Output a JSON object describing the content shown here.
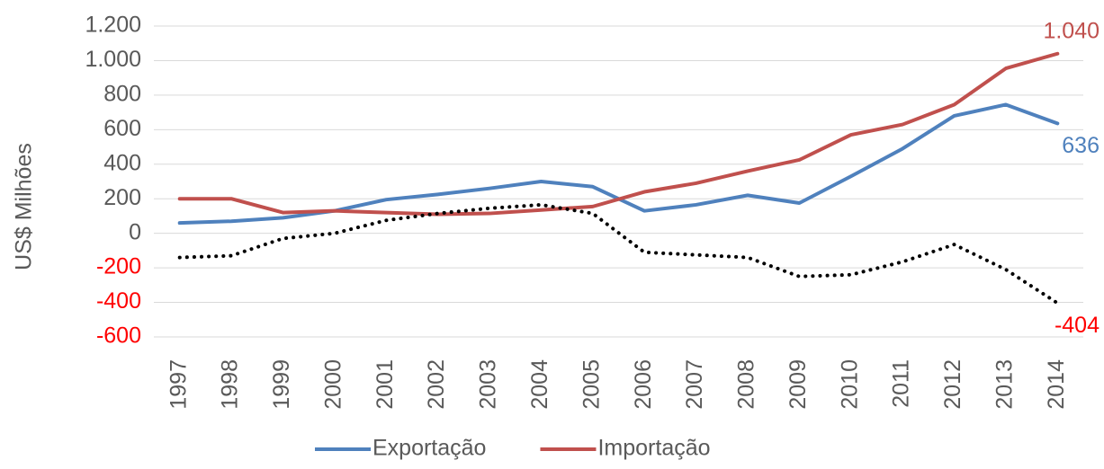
{
  "chart_data": {
    "type": "line",
    "y_label": "US$ Milhões",
    "categories": [
      "1997",
      "1998",
      "1999",
      "2000",
      "2001",
      "2002",
      "2003",
      "2004",
      "2005",
      "2006",
      "2007",
      "2008",
      "2009",
      "2010",
      "2011",
      "2012",
      "2013",
      "2014"
    ],
    "series": [
      {
        "name": "Exportação",
        "color": "#4f81bd",
        "values": [
          60,
          70,
          90,
          130,
          195,
          225,
          260,
          300,
          270,
          130,
          165,
          220,
          175,
          330,
          490,
          680,
          745,
          636
        ],
        "value_labels": [
          null,
          null,
          null,
          null,
          null,
          null,
          null,
          null,
          null,
          null,
          null,
          null,
          null,
          null,
          null,
          null,
          null,
          "636"
        ]
      },
      {
        "name": "Importação",
        "color": "#c0504d",
        "values": [
          200,
          200,
          120,
          130,
          120,
          110,
          115,
          135,
          155,
          240,
          290,
          360,
          425,
          570,
          630,
          745,
          955,
          1040
        ],
        "value_labels": [
          null,
          null,
          null,
          null,
          null,
          null,
          null,
          null,
          null,
          null,
          null,
          null,
          null,
          null,
          null,
          null,
          null,
          "1.040"
        ]
      },
      {
        "color": "#000000",
        "dash": "dotted",
        "value_label_color": "#ff0000",
        "values": [
          -140,
          -130,
          -30,
          0,
          75,
          115,
          145,
          165,
          115,
          -110,
          -125,
          -140,
          -250,
          -240,
          -165,
          -65,
          -210,
          -404
        ],
        "value_labels": [
          null,
          null,
          null,
          null,
          null,
          null,
          null,
          null,
          null,
          null,
          null,
          null,
          null,
          null,
          null,
          null,
          null,
          "-404"
        ]
      }
    ],
    "ylim": [
      -600,
      1200
    ],
    "yticks": [
      {
        "value": 1200,
        "label": "1.200"
      },
      {
        "value": 1000,
        "label": "1.000"
      },
      800,
      600,
      400,
      200,
      0,
      -200,
      -400,
      -600
    ],
    "negative_tick_color": "#ff0000",
    "grid": true
  }
}
